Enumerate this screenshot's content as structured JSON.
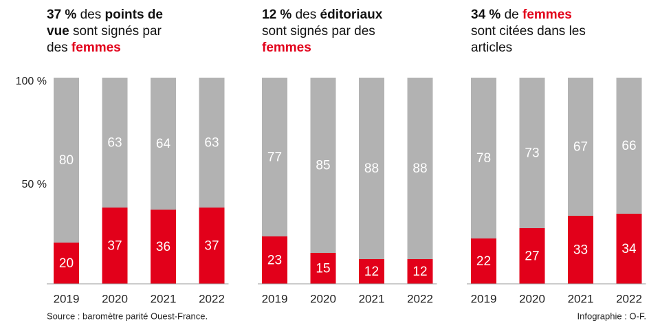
{
  "chart_data": [
    {
      "type": "bar",
      "stacked": true,
      "title": [
        [
          {
            "text": "37 %",
            "style": "bold"
          },
          {
            "text": " des ",
            "style": "plain"
          },
          {
            "text": "points de",
            "style": "bold"
          }
        ],
        [
          {
            "text": "vue",
            "style": "bold"
          },
          {
            "text": " sont signés par",
            "style": "plain"
          }
        ],
        [
          {
            "text": "des ",
            "style": "plain"
          },
          {
            "text": "femmes",
            "style": "highlight"
          }
        ]
      ],
      "categories": [
        "2019",
        "2020",
        "2021",
        "2022"
      ],
      "series": [
        {
          "color": "#e2001a",
          "values": [
            20,
            37,
            36,
            37
          ]
        },
        {
          "color": "#b2b2b2",
          "values": [
            80,
            63,
            64,
            63
          ]
        }
      ],
      "ylim": [
        0,
        100
      ],
      "yticks": [
        {
          "value": 50,
          "label": "50 %"
        },
        {
          "value": 100,
          "label": "100 %"
        }
      ]
    },
    {
      "type": "bar",
      "stacked": true,
      "title": [
        [
          {
            "text": "12 %",
            "style": "bold"
          },
          {
            "text": " des ",
            "style": "plain"
          },
          {
            "text": "éditoriaux",
            "style": "bold"
          }
        ],
        [
          {
            "text": "sont signés par des",
            "style": "plain"
          }
        ],
        [
          {
            "text": "femmes",
            "style": "highlight"
          }
        ]
      ],
      "categories": [
        "2019",
        "2020",
        "2021",
        "2022"
      ],
      "series": [
        {
          "color": "#e2001a",
          "values": [
            23,
            15,
            12,
            12
          ]
        },
        {
          "color": "#b2b2b2",
          "values": [
            77,
            85,
            88,
            88
          ]
        }
      ],
      "ylim": [
        0,
        100
      ]
    },
    {
      "type": "bar",
      "stacked": true,
      "title": [
        [
          {
            "text": "34 %",
            "style": "bold"
          },
          {
            "text": " de ",
            "style": "plain"
          },
          {
            "text": "femmes",
            "style": "highlight"
          }
        ],
        [
          {
            "text": "sont citées dans les",
            "style": "plain"
          }
        ],
        [
          {
            "text": "articles",
            "style": "plain"
          }
        ]
      ],
      "categories": [
        "2019",
        "2020",
        "2021",
        "2022"
      ],
      "series": [
        {
          "color": "#e2001a",
          "values": [
            22,
            27,
            33,
            34
          ]
        },
        {
          "color": "#b2b2b2",
          "values": [
            78,
            73,
            67,
            66
          ]
        }
      ],
      "ylim": [
        0,
        100
      ]
    }
  ],
  "source": "Source : baromètre parité Ouest-France.",
  "credit": "Infographie : O-F."
}
